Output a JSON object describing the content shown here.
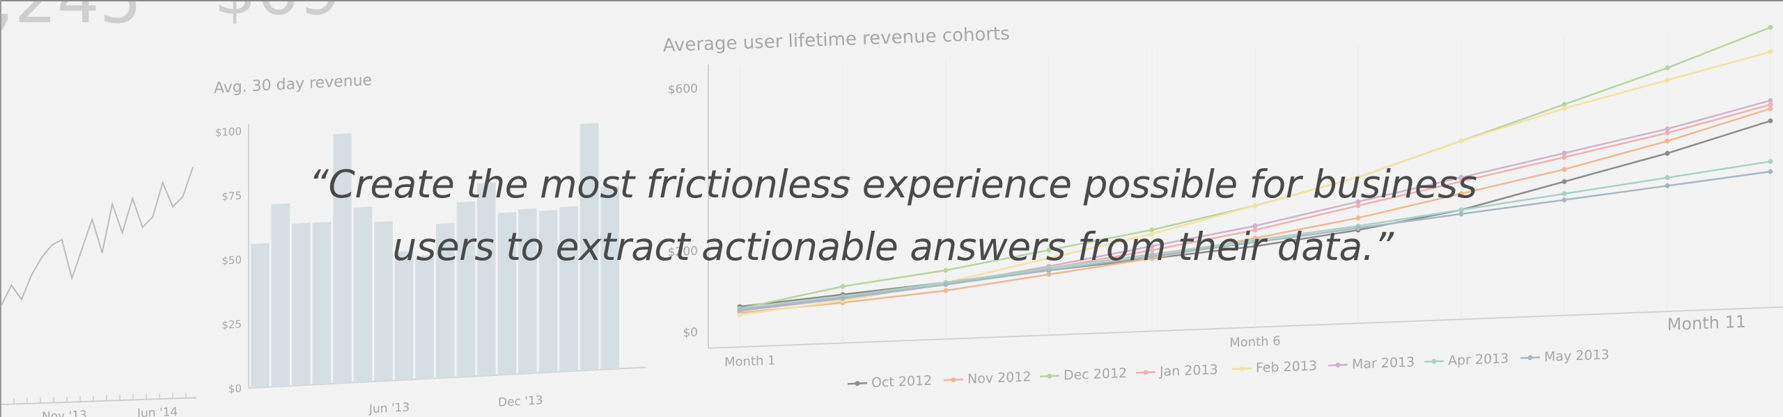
{
  "quote": {
    "line1": "“Create the most frictionless experience possible for business",
    "line2": "users to extract actionable answers from their data.”"
  },
  "background": {
    "left_big_number": ",245",
    "middle_big_number": "$69",
    "left_x_ticks": [
      "Nov '13",
      "Jun '14"
    ]
  },
  "chart_data": [
    {
      "type": "line",
      "title": "",
      "xlabel": "",
      "ylabel": "",
      "x_tick_labels": [
        "Nov '13",
        "Jun '14"
      ],
      "series": [
        {
          "values": [
            18,
            26,
            20,
            30,
            37,
            42,
            44,
            28,
            40,
            52,
            38,
            58,
            46,
            60,
            48,
            52,
            66,
            56,
            60,
            72
          ]
        }
      ]
    },
    {
      "type": "bar",
      "title": "Avg. 30 day revenue",
      "xlabel": "",
      "ylabel": "",
      "y_tick_labels": [
        "$0",
        "$25",
        "$50",
        "$75",
        "$100"
      ],
      "x_tick_labels": [
        "Jun '13",
        "Dec '13"
      ],
      "ylim": [
        0,
        100
      ],
      "values": [
        56,
        71,
        63,
        63,
        97,
        68,
        62,
        50,
        48,
        60,
        68,
        75,
        63,
        64,
        63,
        64,
        96,
        71
      ]
    },
    {
      "type": "line",
      "title": "Average user lifetime revenue cohorts",
      "xlabel": "",
      "ylabel": "",
      "y_tick_labels": [
        "$0",
        "$200",
        "$600"
      ],
      "x_tick_labels": [
        "Month 1",
        "Month 6",
        "Month 11"
      ],
      "ylim": [
        0,
        650
      ],
      "x": [
        1,
        2,
        3,
        4,
        5,
        6,
        7,
        8,
        9,
        10,
        11
      ],
      "legend_position": "bottom",
      "series": [
        {
          "name": "Oct 2012",
          "color": "#8c8c8c",
          "values": [
            60,
            80,
            100,
            120,
            140,
            160,
            190,
            230,
            290,
            350,
            420
          ]
        },
        {
          "name": "Nov 2012",
          "color": "#f0b890",
          "values": [
            45,
            60,
            80,
            110,
            140,
            180,
            220,
            270,
            320,
            380,
            450
          ]
        },
        {
          "name": "Dec 2012",
          "color": "#b8d4a0",
          "values": [
            55,
            100,
            130,
            170,
            210,
            260,
            320,
            400,
            480,
            560,
            650
          ]
        },
        {
          "name": "Jan 2013",
          "color": "#f0b0b0",
          "values": [
            50,
            70,
            95,
            125,
            160,
            200,
            250,
            300,
            350,
            400,
            460
          ]
        },
        {
          "name": "Feb 2013",
          "color": "#f3e3a0",
          "values": [
            40,
            65,
            100,
            150,
            200,
            260,
            320,
            400,
            470,
            530,
            590
          ]
        },
        {
          "name": "Mar 2013",
          "color": "#d4b0cc",
          "values": [
            50,
            70,
            95,
            130,
            170,
            210,
            260,
            310,
            360,
            410,
            470
          ]
        },
        {
          "name": "Apr 2013",
          "color": "#a8d2c4",
          "values": [
            55,
            75,
            100,
            125,
            150,
            175,
            200,
            230,
            260,
            290,
            320
          ]
        },
        {
          "name": "May 2013",
          "color": "#a8b8c4",
          "values": [
            52,
            72,
            95,
            120,
            145,
            170,
            195,
            220,
            245,
            270,
            295
          ]
        }
      ]
    }
  ]
}
